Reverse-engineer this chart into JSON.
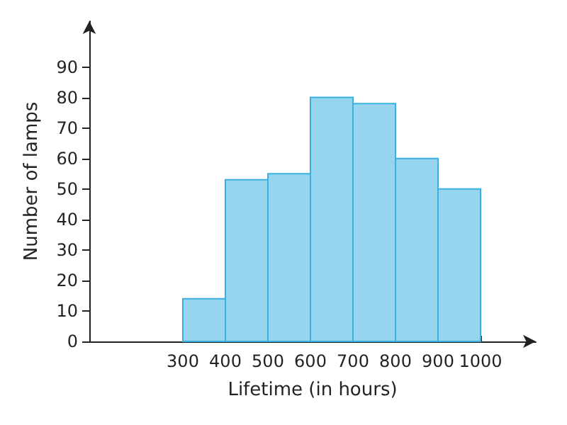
{
  "chart_data": {
    "type": "histogram",
    "xlabel": "Lifetime (in hours)",
    "ylabel": "Number of lamps",
    "bins": [
      300,
      400,
      500,
      600,
      700,
      800,
      900,
      1000
    ],
    "values": [
      14,
      53,
      55,
      80,
      78,
      60,
      50
    ],
    "color": "#97d5ef",
    "xlim": [
      80,
      1130
    ],
    "xticks": [
      300,
      400,
      500,
      600,
      700,
      800,
      900,
      1000
    ],
    "ylim": [
      0,
      105
    ],
    "yticks": [
      0,
      10,
      20,
      30,
      40,
      50,
      60,
      70,
      80,
      90
    ]
  }
}
